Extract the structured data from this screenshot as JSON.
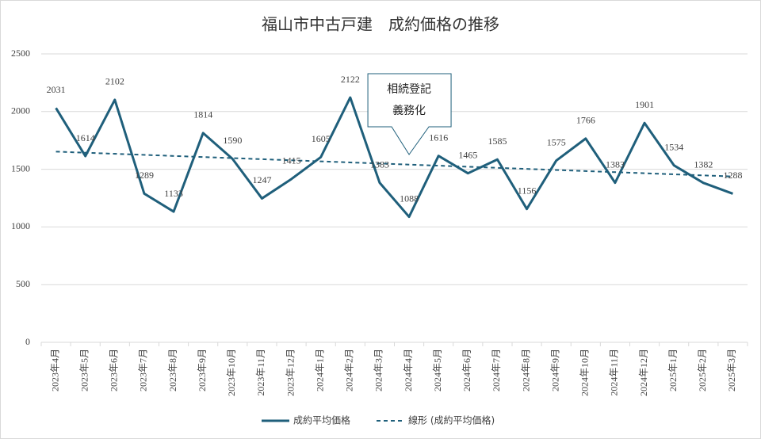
{
  "chart_data": {
    "type": "line",
    "title": "福山市中古戸建　成約価格の推移",
    "categories": [
      "2023年4月",
      "2023年5月",
      "2023年6月",
      "2023年7月",
      "2023年8月",
      "2023年9月",
      "2023年10月",
      "2023年11月",
      "2023年12月",
      "2024年1月",
      "2024年2月",
      "2024年3月",
      "2024年4月",
      "2024年5月",
      "2024年6月",
      "2024年7月",
      "2024年8月",
      "2024年9月",
      "2024年10月",
      "2024年11月",
      "2024年12月",
      "2025年1月",
      "2025年2月",
      "2025年3月"
    ],
    "series": [
      {
        "name": "成約平均価格",
        "color": "#1f5f7b",
        "values": [
          2031,
          1614,
          2102,
          1289,
          1133,
          1814,
          1590,
          1247,
          1415,
          1605,
          2122,
          1383,
          1088,
          1616,
          1465,
          1585,
          1156,
          1575,
          1766,
          1383,
          1901,
          1534,
          1382,
          1288
        ]
      }
    ],
    "trendline": {
      "name": "線形 (成約平均価格)",
      "kind": "linear",
      "color": "#1f5f7b"
    },
    "annotation": {
      "lines": [
        "相続登記",
        "義務化"
      ],
      "at": "2024年4月"
    },
    "ylim": [
      0,
      2500
    ],
    "yticks": [
      0,
      500,
      1000,
      1500,
      2000,
      2500
    ],
    "grid": true,
    "legend": "bottom"
  }
}
